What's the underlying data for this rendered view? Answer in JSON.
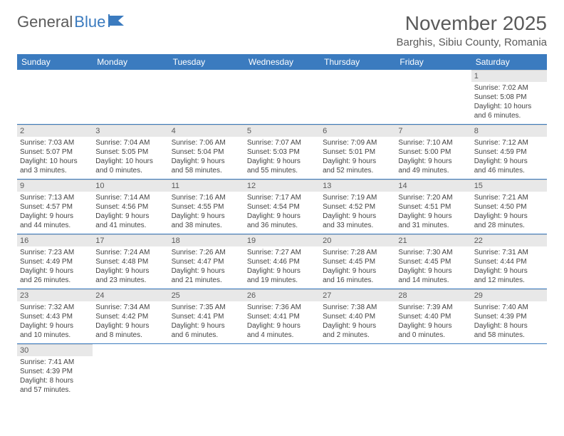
{
  "logo": {
    "part1": "General",
    "part2": "Blue"
  },
  "title": "November 2025",
  "location": "Barghis, Sibiu County, Romania",
  "header_bg": "#3b7bbf",
  "days_of_week": [
    "Sunday",
    "Monday",
    "Tuesday",
    "Wednesday",
    "Thursday",
    "Friday",
    "Saturday"
  ],
  "weeks": [
    [
      null,
      null,
      null,
      null,
      null,
      null,
      {
        "n": "1",
        "sr": "Sunrise: 7:02 AM",
        "ss": "Sunset: 5:08 PM",
        "dl1": "Daylight: 10 hours",
        "dl2": "and 6 minutes."
      }
    ],
    [
      {
        "n": "2",
        "sr": "Sunrise: 7:03 AM",
        "ss": "Sunset: 5:07 PM",
        "dl1": "Daylight: 10 hours",
        "dl2": "and 3 minutes."
      },
      {
        "n": "3",
        "sr": "Sunrise: 7:04 AM",
        "ss": "Sunset: 5:05 PM",
        "dl1": "Daylight: 10 hours",
        "dl2": "and 0 minutes."
      },
      {
        "n": "4",
        "sr": "Sunrise: 7:06 AM",
        "ss": "Sunset: 5:04 PM",
        "dl1": "Daylight: 9 hours",
        "dl2": "and 58 minutes."
      },
      {
        "n": "5",
        "sr": "Sunrise: 7:07 AM",
        "ss": "Sunset: 5:03 PM",
        "dl1": "Daylight: 9 hours",
        "dl2": "and 55 minutes."
      },
      {
        "n": "6",
        "sr": "Sunrise: 7:09 AM",
        "ss": "Sunset: 5:01 PM",
        "dl1": "Daylight: 9 hours",
        "dl2": "and 52 minutes."
      },
      {
        "n": "7",
        "sr": "Sunrise: 7:10 AM",
        "ss": "Sunset: 5:00 PM",
        "dl1": "Daylight: 9 hours",
        "dl2": "and 49 minutes."
      },
      {
        "n": "8",
        "sr": "Sunrise: 7:12 AM",
        "ss": "Sunset: 4:59 PM",
        "dl1": "Daylight: 9 hours",
        "dl2": "and 46 minutes."
      }
    ],
    [
      {
        "n": "9",
        "sr": "Sunrise: 7:13 AM",
        "ss": "Sunset: 4:57 PM",
        "dl1": "Daylight: 9 hours",
        "dl2": "and 44 minutes."
      },
      {
        "n": "10",
        "sr": "Sunrise: 7:14 AM",
        "ss": "Sunset: 4:56 PM",
        "dl1": "Daylight: 9 hours",
        "dl2": "and 41 minutes."
      },
      {
        "n": "11",
        "sr": "Sunrise: 7:16 AM",
        "ss": "Sunset: 4:55 PM",
        "dl1": "Daylight: 9 hours",
        "dl2": "and 38 minutes."
      },
      {
        "n": "12",
        "sr": "Sunrise: 7:17 AM",
        "ss": "Sunset: 4:54 PM",
        "dl1": "Daylight: 9 hours",
        "dl2": "and 36 minutes."
      },
      {
        "n": "13",
        "sr": "Sunrise: 7:19 AM",
        "ss": "Sunset: 4:52 PM",
        "dl1": "Daylight: 9 hours",
        "dl2": "and 33 minutes."
      },
      {
        "n": "14",
        "sr": "Sunrise: 7:20 AM",
        "ss": "Sunset: 4:51 PM",
        "dl1": "Daylight: 9 hours",
        "dl2": "and 31 minutes."
      },
      {
        "n": "15",
        "sr": "Sunrise: 7:21 AM",
        "ss": "Sunset: 4:50 PM",
        "dl1": "Daylight: 9 hours",
        "dl2": "and 28 minutes."
      }
    ],
    [
      {
        "n": "16",
        "sr": "Sunrise: 7:23 AM",
        "ss": "Sunset: 4:49 PM",
        "dl1": "Daylight: 9 hours",
        "dl2": "and 26 minutes."
      },
      {
        "n": "17",
        "sr": "Sunrise: 7:24 AM",
        "ss": "Sunset: 4:48 PM",
        "dl1": "Daylight: 9 hours",
        "dl2": "and 23 minutes."
      },
      {
        "n": "18",
        "sr": "Sunrise: 7:26 AM",
        "ss": "Sunset: 4:47 PM",
        "dl1": "Daylight: 9 hours",
        "dl2": "and 21 minutes."
      },
      {
        "n": "19",
        "sr": "Sunrise: 7:27 AM",
        "ss": "Sunset: 4:46 PM",
        "dl1": "Daylight: 9 hours",
        "dl2": "and 19 minutes."
      },
      {
        "n": "20",
        "sr": "Sunrise: 7:28 AM",
        "ss": "Sunset: 4:45 PM",
        "dl1": "Daylight: 9 hours",
        "dl2": "and 16 minutes."
      },
      {
        "n": "21",
        "sr": "Sunrise: 7:30 AM",
        "ss": "Sunset: 4:45 PM",
        "dl1": "Daylight: 9 hours",
        "dl2": "and 14 minutes."
      },
      {
        "n": "22",
        "sr": "Sunrise: 7:31 AM",
        "ss": "Sunset: 4:44 PM",
        "dl1": "Daylight: 9 hours",
        "dl2": "and 12 minutes."
      }
    ],
    [
      {
        "n": "23",
        "sr": "Sunrise: 7:32 AM",
        "ss": "Sunset: 4:43 PM",
        "dl1": "Daylight: 9 hours",
        "dl2": "and 10 minutes."
      },
      {
        "n": "24",
        "sr": "Sunrise: 7:34 AM",
        "ss": "Sunset: 4:42 PM",
        "dl1": "Daylight: 9 hours",
        "dl2": "and 8 minutes."
      },
      {
        "n": "25",
        "sr": "Sunrise: 7:35 AM",
        "ss": "Sunset: 4:41 PM",
        "dl1": "Daylight: 9 hours",
        "dl2": "and 6 minutes."
      },
      {
        "n": "26",
        "sr": "Sunrise: 7:36 AM",
        "ss": "Sunset: 4:41 PM",
        "dl1": "Daylight: 9 hours",
        "dl2": "and 4 minutes."
      },
      {
        "n": "27",
        "sr": "Sunrise: 7:38 AM",
        "ss": "Sunset: 4:40 PM",
        "dl1": "Daylight: 9 hours",
        "dl2": "and 2 minutes."
      },
      {
        "n": "28",
        "sr": "Sunrise: 7:39 AM",
        "ss": "Sunset: 4:40 PM",
        "dl1": "Daylight: 9 hours",
        "dl2": "and 0 minutes."
      },
      {
        "n": "29",
        "sr": "Sunrise: 7:40 AM",
        "ss": "Sunset: 4:39 PM",
        "dl1": "Daylight: 8 hours",
        "dl2": "and 58 minutes."
      }
    ],
    [
      {
        "n": "30",
        "sr": "Sunrise: 7:41 AM",
        "ss": "Sunset: 4:39 PM",
        "dl1": "Daylight: 8 hours",
        "dl2": "and 57 minutes."
      },
      null,
      null,
      null,
      null,
      null,
      null
    ]
  ]
}
